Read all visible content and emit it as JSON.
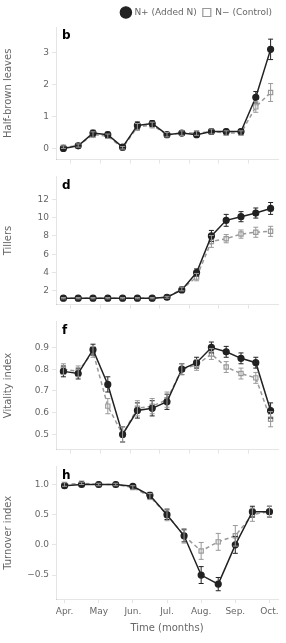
{
  "chart_data": [
    {
      "type": "line",
      "ylabel": "Half-brown leaves",
      "annotation": "b",
      "xlim": [
        -0.5,
        14.5
      ],
      "xticks": [
        0.5,
        2.5,
        4.5,
        6.5,
        8.5,
        10.5,
        12.5
      ],
      "ylim": [
        -0.35,
        3.8
      ],
      "yticks": [
        0,
        1,
        2,
        3
      ],
      "grid": false,
      "tick_labels": "y",
      "legend": "upper right",
      "series": [
        {
          "name": "N+ (Added N)",
          "color": "#222222",
          "marker": "circle",
          "line_style": "solid",
          "x": [
            0,
            1,
            2,
            3,
            4,
            5,
            6,
            7,
            8,
            9,
            10,
            11,
            12,
            13,
            14
          ],
          "values": [
            0.0,
            0.08,
            0.48,
            0.43,
            0.04,
            0.72,
            0.78,
            0.43,
            0.48,
            0.43,
            0.53,
            0.53,
            0.53,
            1.6,
            3.1
          ],
          "errors": [
            0.05,
            0.06,
            0.09,
            0.08,
            0.05,
            0.11,
            0.09,
            0.07,
            0.07,
            0.06,
            0.08,
            0.07,
            0.07,
            0.18,
            0.32
          ]
        },
        {
          "name": "N− (Control)",
          "color": "#999999",
          "marker": "open-square",
          "line_style": "dashed",
          "x": [
            0,
            1,
            2,
            3,
            4,
            5,
            6,
            7,
            8,
            9,
            10,
            11,
            12,
            13,
            14
          ],
          "values": [
            0.04,
            0.09,
            0.43,
            0.38,
            0.02,
            0.67,
            0.73,
            0.43,
            0.48,
            0.48,
            0.53,
            0.48,
            0.48,
            1.3,
            1.75
          ],
          "errors": [
            0.04,
            0.05,
            0.09,
            0.07,
            0.04,
            0.11,
            0.09,
            0.07,
            0.07,
            0.07,
            0.08,
            0.07,
            0.07,
            0.17,
            0.28
          ]
        }
      ]
    },
    {
      "type": "line",
      "ylabel": "Tillers",
      "annotation": "d",
      "xlim": [
        -0.5,
        14.5
      ],
      "xticks": [
        0.5,
        2.5,
        4.5,
        6.5,
        8.5,
        10.5,
        12.5
      ],
      "ylim": [
        0.5,
        14.5
      ],
      "yticks": [
        2,
        4,
        6,
        8,
        10,
        12
      ],
      "grid": false,
      "tick_labels": "y",
      "series": [
        {
          "name": "N+ (Added N)",
          "color": "#222222",
          "marker": "circle",
          "line_style": "solid",
          "x": [
            0,
            1,
            2,
            3,
            4,
            5,
            6,
            7,
            8,
            9,
            10,
            11,
            12,
            13,
            14
          ],
          "values": [
            1.2,
            1.2,
            1.2,
            1.2,
            1.2,
            1.2,
            1.2,
            1.3,
            2.1,
            4.0,
            8.0,
            9.7,
            10.1,
            10.5,
            11.0
          ],
          "errors": [
            0.07,
            0.07,
            0.07,
            0.07,
            0.07,
            0.07,
            0.07,
            0.1,
            0.2,
            0.4,
            0.6,
            0.65,
            0.55,
            0.55,
            0.65
          ]
        },
        {
          "name": "N− (Control)",
          "color": "#999999",
          "marker": "open-square",
          "line_style": "dashed",
          "x": [
            0,
            1,
            2,
            3,
            4,
            5,
            6,
            7,
            8,
            9,
            10,
            11,
            12,
            13,
            14
          ],
          "values": [
            1.2,
            1.2,
            1.2,
            1.2,
            1.2,
            1.2,
            1.2,
            1.3,
            2.2,
            3.5,
            7.4,
            7.7,
            8.2,
            8.4,
            8.5
          ],
          "errors": [
            0.07,
            0.07,
            0.07,
            0.07,
            0.07,
            0.07,
            0.07,
            0.1,
            0.2,
            0.4,
            0.65,
            0.45,
            0.45,
            0.55,
            0.55
          ]
        }
      ]
    },
    {
      "type": "line",
      "ylabel": "Vitality index",
      "annotation": "f",
      "xlim": [
        -0.5,
        14.5
      ],
      "xticks": [
        0.5,
        2.5,
        4.5,
        6.5,
        8.5,
        10.5,
        12.5
      ],
      "ylim": [
        0.43,
        1.02
      ],
      "yticks": [
        0.5,
        0.6,
        0.7,
        0.8,
        0.9
      ],
      "grid": false,
      "tick_labels": "y",
      "series": [
        {
          "name": "N+ (Added N)",
          "color": "#222222",
          "marker": "circle",
          "line_style": "solid",
          "x": [
            0,
            1,
            2,
            3,
            4,
            5,
            6,
            7,
            8,
            9,
            10,
            11,
            12,
            13,
            14
          ],
          "values": [
            0.79,
            0.78,
            0.89,
            0.73,
            0.5,
            0.61,
            0.62,
            0.65,
            0.8,
            0.83,
            0.9,
            0.88,
            0.85,
            0.83,
            0.61
          ],
          "errors": [
            0.025,
            0.025,
            0.025,
            0.035,
            0.035,
            0.035,
            0.035,
            0.035,
            0.025,
            0.025,
            0.025,
            0.025,
            0.025,
            0.025,
            0.035
          ]
        },
        {
          "name": "N− (Control)",
          "color": "#999999",
          "marker": "open-square",
          "line_style": "dashed",
          "x": [
            0,
            1,
            2,
            3,
            4,
            5,
            6,
            7,
            8,
            9,
            10,
            11,
            12,
            13,
            14
          ],
          "values": [
            0.8,
            0.79,
            0.88,
            0.63,
            0.5,
            0.62,
            0.63,
            0.66,
            0.8,
            0.82,
            0.87,
            0.81,
            0.78,
            0.76,
            0.57
          ],
          "errors": [
            0.025,
            0.025,
            0.025,
            0.035,
            0.035,
            0.035,
            0.035,
            0.035,
            0.025,
            0.025,
            0.025,
            0.025,
            0.025,
            0.025,
            0.035
          ]
        }
      ]
    },
    {
      "type": "line",
      "ylabel": "Turnover index",
      "xlabel": "Time (months)",
      "annotation": "h",
      "xlim": [
        -0.5,
        12.5
      ],
      "xticks": [
        {
          "value": 0,
          "label": "Apr."
        },
        {
          "value": 2,
          "label": "May"
        },
        {
          "value": 4,
          "label": "Jun."
        },
        {
          "value": 6,
          "label": "Jul."
        },
        {
          "value": 8,
          "label": "Aug."
        },
        {
          "value": 10,
          "label": "Sep."
        },
        {
          "value": 12,
          "label": "Oct."
        }
      ],
      "ylim": [
        -0.9,
        1.3
      ],
      "yticks": [
        {
          "value": -0.5,
          "label": "−0.5"
        },
        {
          "value": 0,
          "label": "0.0"
        },
        {
          "value": 0.5,
          "label": "0.5"
        },
        {
          "value": 1,
          "label": "1.0"
        }
      ],
      "grid": false,
      "series": [
        {
          "name": "N+ (Added N)",
          "color": "#222222",
          "marker": "circle",
          "line_style": "solid",
          "x": [
            0,
            1,
            2,
            3,
            4,
            5,
            6,
            7,
            8,
            9,
            10,
            11,
            12
          ],
          "values": [
            0.98,
            1.0,
            1.0,
            1.0,
            0.97,
            0.82,
            0.5,
            0.15,
            -0.5,
            -0.65,
            0.0,
            0.55,
            0.55
          ],
          "errors": [
            0.03,
            0.02,
            0.02,
            0.02,
            0.03,
            0.05,
            0.08,
            0.1,
            0.14,
            0.11,
            0.14,
            0.09,
            0.09
          ]
        },
        {
          "name": "N− (Control)",
          "color": "#999999",
          "marker": "open-square",
          "line_style": "dashed",
          "x": [
            0,
            1,
            2,
            3,
            4,
            5,
            6,
            7,
            8,
            9,
            10,
            11,
            12
          ],
          "values": [
            1.0,
            1.02,
            1.0,
            1.0,
            0.95,
            0.8,
            0.5,
            0.15,
            -0.1,
            0.05,
            0.15,
            0.5,
            0.55
          ],
          "errors": [
            0.03,
            0.02,
            0.02,
            0.02,
            0.03,
            0.05,
            0.1,
            0.12,
            0.14,
            0.14,
            0.17,
            0.11,
            0.09
          ]
        }
      ]
    }
  ]
}
